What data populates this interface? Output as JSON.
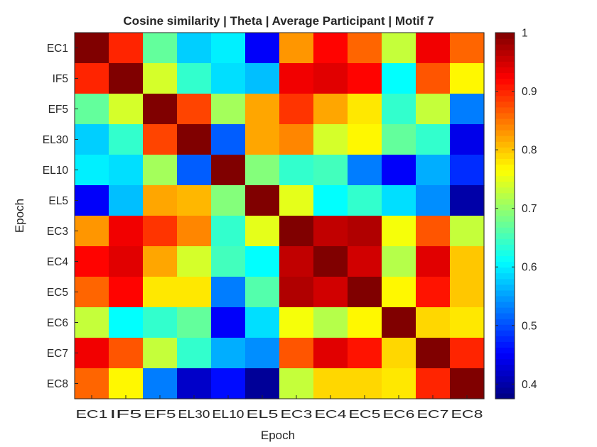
{
  "chart_data": {
    "type": "heatmap",
    "title": "Cosine similarity | Theta | Average Participant | Motif 7",
    "xlabel": "Epoch",
    "ylabel": "Epoch",
    "x_categories": [
      "EC1",
      "IF5",
      "EF5",
      "EL30",
      "EL10",
      "EL5",
      "EC3",
      "EC4",
      "EC5",
      "EC6",
      "EC7",
      "EC8"
    ],
    "y_categories": [
      "EC1",
      "IF5",
      "EF5",
      "EL30",
      "EL10",
      "EL5",
      "EC3",
      "EC4",
      "EC5",
      "EC6",
      "EC7",
      "EC8"
    ],
    "values": [
      [
        1.0,
        0.9,
        0.67,
        0.58,
        0.6,
        0.45,
        0.83,
        0.92,
        0.86,
        0.73,
        0.93,
        0.86
      ],
      [
        0.9,
        1.0,
        0.74,
        0.64,
        0.59,
        0.57,
        0.93,
        0.94,
        0.92,
        0.61,
        0.87,
        0.77
      ],
      [
        0.67,
        0.74,
        1.0,
        0.88,
        0.71,
        0.82,
        0.89,
        0.82,
        0.78,
        0.64,
        0.73,
        0.53
      ],
      [
        0.58,
        0.64,
        0.88,
        1.0,
        0.51,
        0.82,
        0.84,
        0.74,
        0.77,
        0.67,
        0.64,
        0.44
      ],
      [
        0.6,
        0.59,
        0.71,
        0.51,
        1.0,
        0.69,
        0.64,
        0.65,
        0.53,
        0.45,
        0.56,
        0.48
      ],
      [
        0.45,
        0.57,
        0.82,
        0.81,
        0.69,
        1.0,
        0.75,
        0.61,
        0.64,
        0.59,
        0.54,
        0.4
      ],
      [
        0.83,
        0.93,
        0.89,
        0.84,
        0.64,
        0.75,
        1.0,
        0.96,
        0.97,
        0.76,
        0.87,
        0.73
      ],
      [
        0.92,
        0.94,
        0.82,
        0.74,
        0.65,
        0.61,
        0.96,
        1.0,
        0.95,
        0.72,
        0.94,
        0.8
      ],
      [
        0.86,
        0.92,
        0.78,
        0.78,
        0.53,
        0.66,
        0.97,
        0.95,
        1.0,
        0.77,
        0.91,
        0.8
      ],
      [
        0.73,
        0.61,
        0.64,
        0.67,
        0.45,
        0.59,
        0.76,
        0.72,
        0.77,
        1.0,
        0.79,
        0.78
      ],
      [
        0.93,
        0.87,
        0.73,
        0.64,
        0.56,
        0.54,
        0.87,
        0.94,
        0.91,
        0.79,
        1.0,
        0.9
      ],
      [
        0.86,
        0.77,
        0.53,
        0.42,
        0.46,
        0.39,
        0.73,
        0.79,
        0.79,
        0.78,
        0.9,
        1.0
      ]
    ],
    "colormap": "jet",
    "clim": [
      0.375,
      1.0
    ],
    "colorbar_ticks": [
      "0.4",
      "0.5",
      "0.6",
      "0.7",
      "0.8",
      "0.9",
      "1"
    ],
    "colorbar_tick_values": [
      0.4,
      0.5,
      0.6,
      0.7,
      0.8,
      0.9,
      1.0
    ],
    "grid": false
  }
}
